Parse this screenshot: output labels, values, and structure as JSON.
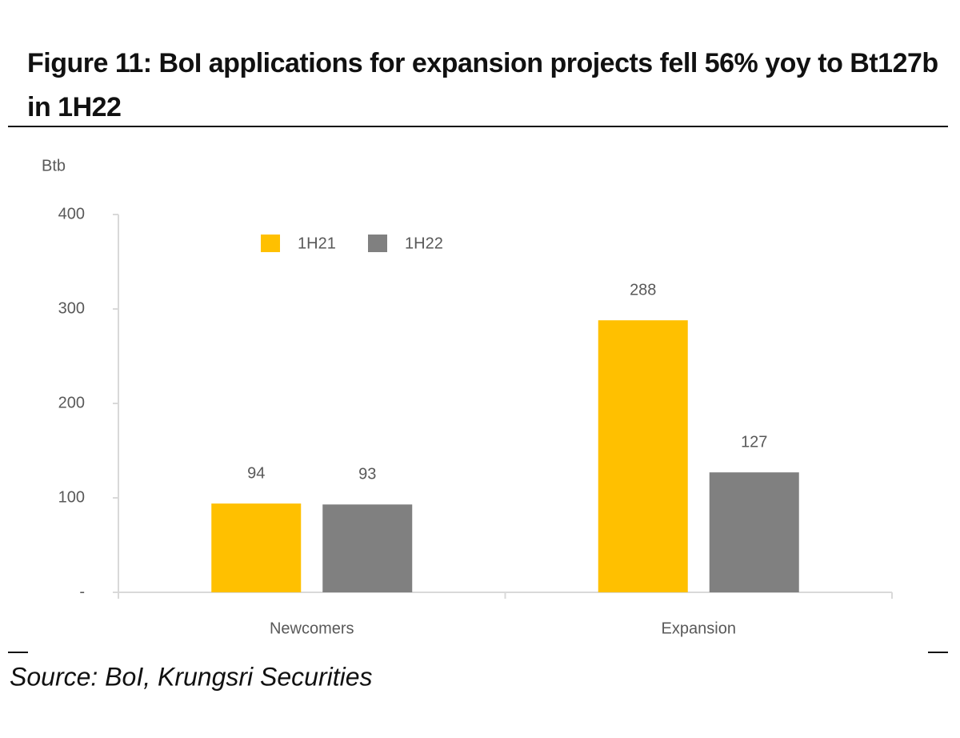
{
  "chart_data": {
    "type": "bar",
    "title": "Figure 11: BoI applications for expansion projects fell 56% yoy to Bt127b in 1H22",
    "y_label": "Btb",
    "categories": [
      "Newcomers",
      "Expansion"
    ],
    "series": [
      {
        "name": "1H21",
        "color": "#FFC000",
        "values": [
          94,
          288
        ]
      },
      {
        "name": "1H22",
        "color": "#808080",
        "values": [
          93,
          127
        ]
      }
    ],
    "ylim": [
      0,
      400
    ],
    "yticks": [
      {
        "value": 0,
        "label": "-"
      },
      100,
      200,
      300,
      400
    ],
    "legend": "top-left",
    "source": "Source:  BoI, Krungsri Securities"
  }
}
